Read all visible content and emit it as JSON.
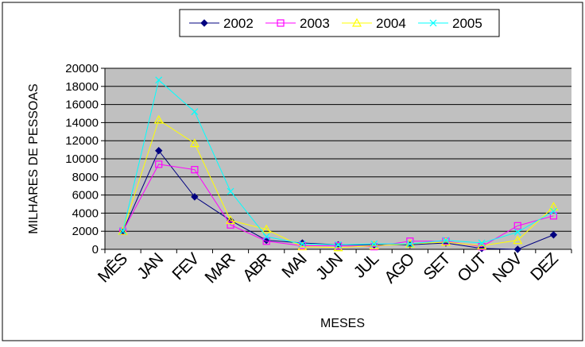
{
  "chart_data": {
    "type": "line",
    "categories": [
      "MÊS",
      "JAN",
      "FEV",
      "MAR",
      "ABR",
      "MAI",
      "JUN",
      "JUL",
      "AGO",
      "SET",
      "OUT",
      "NOV",
      "DEZ"
    ],
    "series": [
      {
        "name": "2002",
        "color": "#000080",
        "marker": "diamond",
        "values": [
          2000,
          10900,
          5800,
          3200,
          1000,
          700,
          500,
          500,
          500,
          700,
          100,
          0,
          1600
        ]
      },
      {
        "name": "2003",
        "color": "#ff00ff",
        "marker": "square",
        "values": [
          2000,
          9400,
          8800,
          2700,
          900,
          400,
          400,
          300,
          900,
          900,
          300,
          2600,
          3700
        ]
      },
      {
        "name": "2004",
        "color": "#ffff00",
        "marker": "triangle",
        "values": [
          2000,
          14300,
          11700,
          3200,
          2200,
          300,
          200,
          400,
          600,
          800,
          400,
          1000,
          4700
        ]
      },
      {
        "name": "2005",
        "color": "#00ffff",
        "marker": "cross",
        "values": [
          2000,
          18700,
          15200,
          6400,
          1400,
          600,
          500,
          600,
          600,
          1000,
          700,
          1900,
          4200
        ]
      }
    ],
    "title": "",
    "xlabel": "MESES",
    "ylabel": "MILHARES DE PESSOAS",
    "ylim": [
      0,
      20000
    ],
    "yticks": [
      0,
      2000,
      4000,
      6000,
      8000,
      10000,
      12000,
      14000,
      16000,
      18000,
      20000
    ],
    "grid": true,
    "legend_position": "top",
    "plot_background": "#c0c0c0"
  }
}
